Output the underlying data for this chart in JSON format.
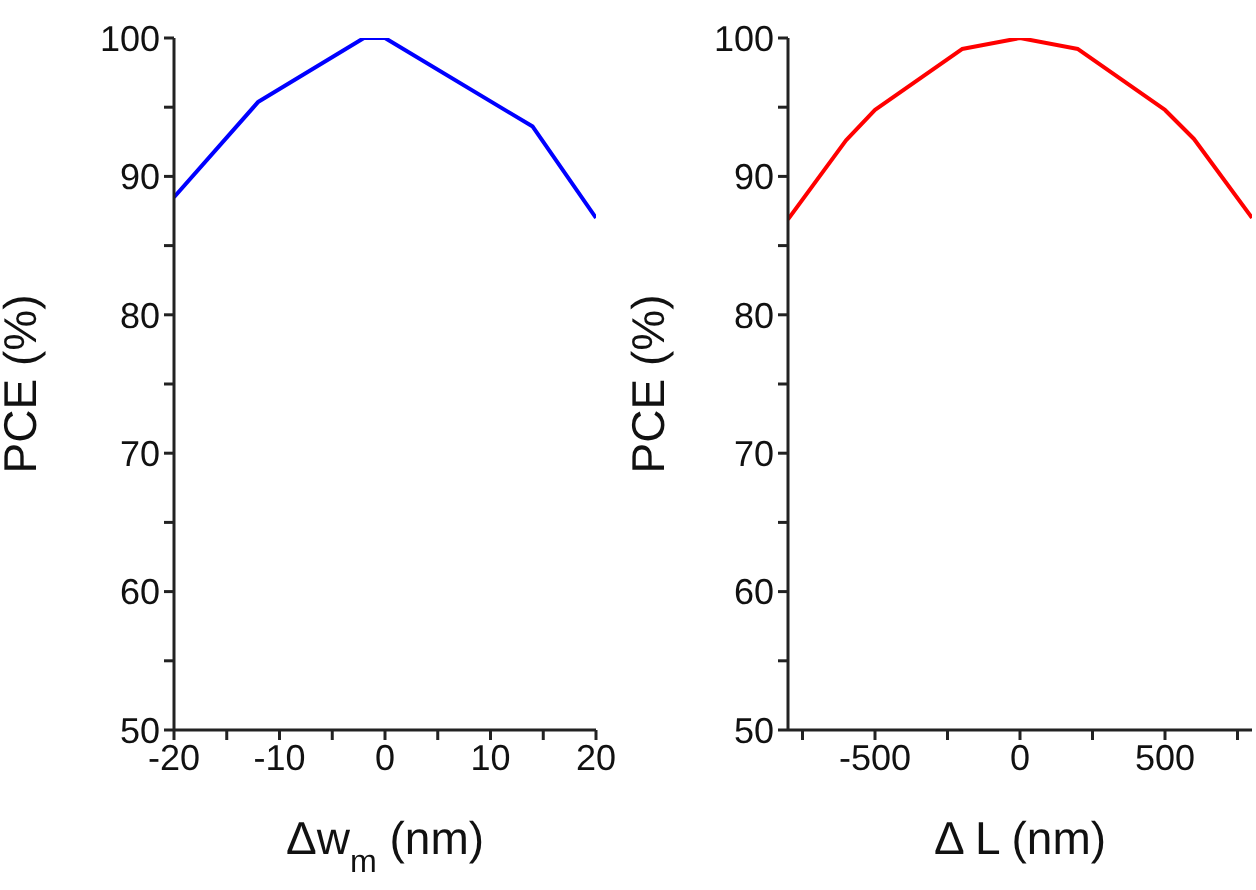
{
  "chart_data": [
    {
      "type": "line",
      "xlabel": "Δw$_{m}$ (nm)",
      "ylabel": "PCE (%)",
      "x": [
        -20,
        -12,
        -2,
        0,
        14,
        20
      ],
      "series": [
        {
          "color": "#0000ff",
          "values": [
            88.5,
            95.4,
            100,
            100,
            93.6,
            87.0
          ]
        }
      ],
      "xlim": [
        -20,
        20
      ],
      "xticks": [
        -20,
        {
          "value": -15,
          "label": null
        },
        -10,
        {
          "value": -5,
          "label": null
        },
        0,
        {
          "value": 5,
          "label": null
        },
        10,
        {
          "value": 15,
          "label": null
        },
        20
      ],
      "ylim": [
        50,
        100
      ],
      "yticks": [
        50,
        {
          "value": 55,
          "label": null
        },
        60,
        {
          "value": 65,
          "label": null
        },
        70,
        {
          "value": 75,
          "label": null
        },
        80,
        {
          "value": 85,
          "label": null
        },
        90,
        {
          "value": 95,
          "label": null
        },
        100
      ],
      "grid": false,
      "legend": false,
      "marker": "none",
      "line_style": "solid"
    },
    {
      "type": "line",
      "xlabel": "Δ L (nm)",
      "ylabel": "PCE (%)",
      "x": [
        -800,
        -600,
        -500,
        -200,
        0,
        200,
        500,
        600,
        800
      ],
      "series": [
        {
          "color": "#ff0000",
          "values": [
            86.9,
            92.6,
            94.8,
            99.2,
            100,
            99.2,
            94.8,
            92.7,
            87.0
          ]
        }
      ],
      "xlim": [
        -800,
        800
      ],
      "xticks": [
        {
          "value": -750,
          "label": null
        },
        -500,
        {
          "value": -250,
          "label": null
        },
        0,
        {
          "value": 250,
          "label": null
        },
        500,
        {
          "value": 750,
          "label": null
        }
      ],
      "ylim": [
        50,
        100
      ],
      "yticks": [
        50,
        {
          "value": 55,
          "label": null
        },
        60,
        {
          "value": 65,
          "label": null
        },
        70,
        {
          "value": 75,
          "label": null
        },
        80,
        {
          "value": 85,
          "label": null
        },
        90,
        {
          "value": 95,
          "label": null
        },
        100
      ],
      "grid": false,
      "legend": false,
      "marker": "none",
      "line_style": "solid"
    }
  ]
}
